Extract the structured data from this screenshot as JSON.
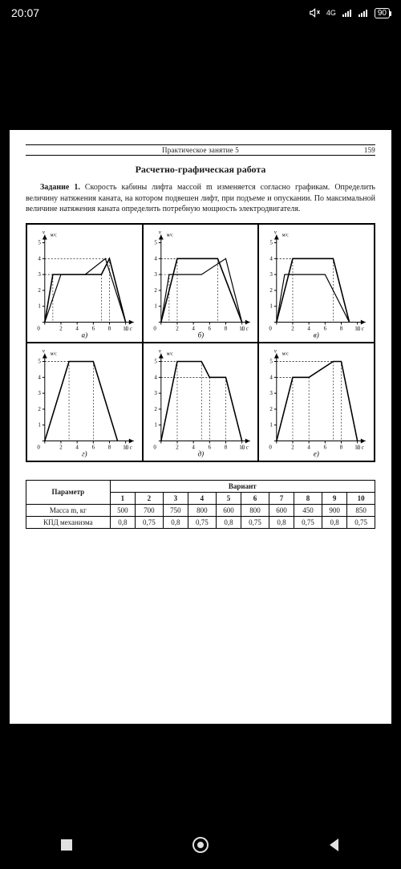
{
  "status": {
    "time": "20:07",
    "network": "4G",
    "battery": "90"
  },
  "page": {
    "chapter": "Практическое занятие 5",
    "number": "159",
    "work_title": "Расчетно-графическая работа",
    "task_label": "Задание 1.",
    "task_body": "Скорость кабины лифта массой m изменяется согласно графикам. Определить величину натяжения каната, на котором подвешен лифт, при подъеме и опускании. По максимальной величине натяжения каната определить потребную мощность электродвигателя."
  },
  "chart_common": {
    "x_label": "t, с",
    "y_label_prefix": "v",
    "y_label_unit": "м/с",
    "xlim": [
      0,
      11
    ],
    "ylim": [
      0,
      5.5
    ],
    "x_ticks": [
      0,
      2,
      4,
      6,
      8,
      10
    ],
    "y_ticks": [
      0,
      1,
      2,
      3,
      4,
      5
    ],
    "axis_color": "#000000",
    "grid_dash": "2,2",
    "line_color": "#000000",
    "line_width": 1.6,
    "font_size_axis": 7,
    "background_color": "#ffffff"
  },
  "charts": [
    {
      "caption": "а)",
      "series": [
        {
          "pts": [
            [
              0,
              0
            ],
            [
              1,
              3
            ],
            [
              7,
              3
            ],
            [
              8,
              4
            ],
            [
              10,
              0
            ]
          ],
          "dashes": {
            "3": [
              1,
              7
            ],
            "4": [
              8
            ]
          }
        },
        {
          "pts": [
            [
              0,
              0
            ],
            [
              2,
              3
            ],
            [
              5,
              3
            ],
            [
              7.5,
              4
            ],
            [
              10,
              0
            ]
          ],
          "weight": 1.2
        }
      ]
    },
    {
      "caption": "б)",
      "series": [
        {
          "pts": [
            [
              0,
              0
            ],
            [
              2,
              4
            ],
            [
              7,
              4
            ],
            [
              10,
              0
            ]
          ],
          "dashes": {
            "4": [
              2,
              7
            ]
          }
        },
        {
          "pts": [
            [
              0,
              0
            ],
            [
              1,
              3
            ],
            [
              5,
              3
            ],
            [
              8,
              4
            ],
            [
              10,
              0
            ]
          ],
          "weight": 1.2,
          "dashes": {
            "3": [
              1
            ]
          }
        }
      ]
    },
    {
      "caption": "в)",
      "series": [
        {
          "pts": [
            [
              0,
              0
            ],
            [
              2,
              4
            ],
            [
              7,
              4
            ],
            [
              9,
              0
            ]
          ],
          "dashes": {
            "4": [
              2,
              7
            ]
          }
        },
        {
          "pts": [
            [
              0,
              0
            ],
            [
              1,
              3
            ],
            [
              6,
              3
            ],
            [
              9,
              0
            ]
          ],
          "weight": 1.2
        }
      ]
    },
    {
      "caption": "г)",
      "series": [
        {
          "pts": [
            [
              0,
              0
            ],
            [
              3,
              5
            ],
            [
              6,
              5
            ],
            [
              9,
              0
            ]
          ],
          "dashes": {
            "5": [
              3,
              6
            ]
          }
        }
      ]
    },
    {
      "caption": "д)",
      "series": [
        {
          "pts": [
            [
              0,
              0
            ],
            [
              2,
              5
            ],
            [
              5,
              5
            ],
            [
              6,
              4
            ],
            [
              8,
              4
            ],
            [
              10,
              0
            ]
          ],
          "dashes": {
            "5": [
              2,
              5
            ],
            "4": [
              6,
              8
            ]
          }
        }
      ]
    },
    {
      "caption": "е)",
      "series": [
        {
          "pts": [
            [
              0,
              0
            ],
            [
              2,
              4
            ],
            [
              4,
              4
            ],
            [
              7,
              5
            ],
            [
              8,
              5
            ],
            [
              10,
              0
            ]
          ],
          "dashes": {
            "4": [
              2,
              4
            ],
            "5": [
              7,
              8
            ]
          }
        }
      ]
    }
  ],
  "table": {
    "header_param": "Параметр",
    "header_variant": "Вариант",
    "variant_numbers": [
      "1",
      "2",
      "3",
      "4",
      "5",
      "6",
      "7",
      "8",
      "9",
      "10"
    ],
    "rows": [
      {
        "label": "Масса m, кг",
        "values": [
          "500",
          "700",
          "750",
          "800",
          "600",
          "800",
          "600",
          "450",
          "900",
          "850"
        ]
      },
      {
        "label": "КПД механизма",
        "values": [
          "0,8",
          "0,75",
          "0,8",
          "0,75",
          "0,8",
          "0,75",
          "0,8",
          "0,75",
          "0,8",
          "0,75"
        ]
      }
    ]
  },
  "nav": {
    "items": [
      "recent-icon",
      "home-icon",
      "back-icon"
    ]
  }
}
